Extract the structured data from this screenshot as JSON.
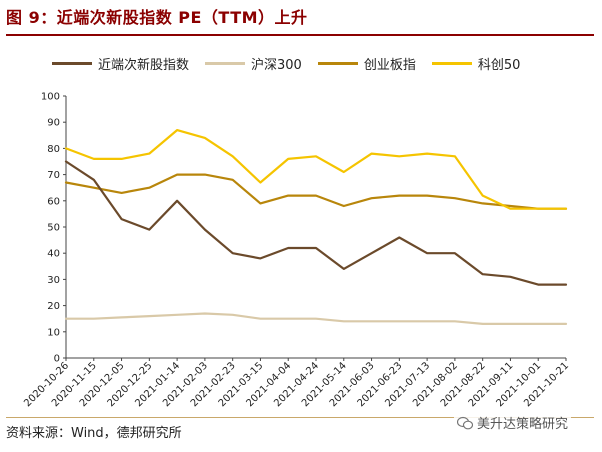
{
  "header": {
    "title": "图 9：近端次新股指数 PE（TTM）上升"
  },
  "footer": {
    "source": "资料来源：Wind，德邦研究所",
    "watermark": "美升达策略研究"
  },
  "chart_data": {
    "type": "line",
    "title": "近端次新股指数 PE（TTM）上升",
    "xlabel": "",
    "ylabel": "",
    "ylim": [
      0,
      100
    ],
    "yticks": [
      0,
      10,
      20,
      30,
      40,
      50,
      60,
      70,
      80,
      90,
      100
    ],
    "x": [
      "2020-10-26",
      "2020-11-15",
      "2020-12-05",
      "2020-12-25",
      "2021-01-14",
      "2021-02-03",
      "2021-02-23",
      "2021-03-15",
      "2021-04-04",
      "2021-04-24",
      "2021-05-14",
      "2021-06-03",
      "2021-06-23",
      "2021-07-13",
      "2021-08-02",
      "2021-08-22",
      "2021-09-11",
      "2021-10-01",
      "2021-10-21"
    ],
    "legend_position": "top",
    "series": [
      {
        "name": "近端次新股指数",
        "color": "#6b4a2b",
        "values": [
          75,
          68,
          53,
          49,
          60,
          49,
          40,
          38,
          42,
          42,
          34,
          40,
          46,
          40,
          40,
          32,
          31,
          28,
          28
        ]
      },
      {
        "name": "沪深300",
        "color": "#d9c9a8",
        "values": [
          15,
          15,
          15.5,
          16,
          16.5,
          17,
          16.5,
          15,
          15,
          15,
          14,
          14,
          14,
          14,
          14,
          13,
          13,
          13,
          13
        ]
      },
      {
        "name": "创业板指",
        "color": "#b8860b",
        "values": [
          67,
          65,
          63,
          65,
          70,
          70,
          68,
          59,
          62,
          62,
          58,
          61,
          62,
          62,
          61,
          59,
          58,
          57,
          57
        ]
      },
      {
        "name": "科创50",
        "color": "#f5c400",
        "values": [
          80,
          76,
          76,
          78,
          87,
          84,
          77,
          67,
          76,
          77,
          71,
          78,
          77,
          78,
          77,
          62,
          57,
          57,
          57
        ]
      }
    ]
  }
}
